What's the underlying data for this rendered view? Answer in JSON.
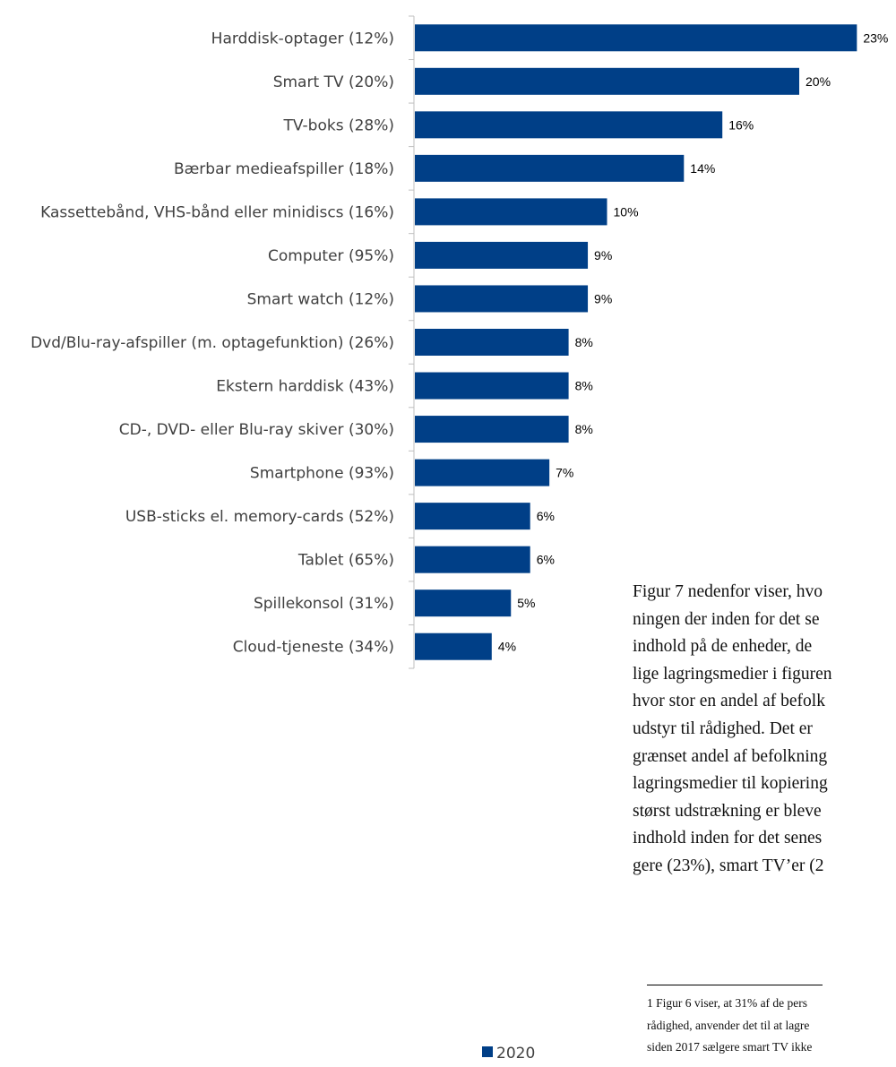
{
  "chart_data": {
    "type": "bar",
    "orientation": "horizontal",
    "categories": [
      "Harddisk-optager (12%)",
      "Smart TV (20%)",
      "TV-boks (28%)",
      "Bærbar medieafspiller (18%)",
      "Kassettebånd, VHS-bånd eller minidiscs (16%)",
      "Computer (95%)",
      "Smart watch (12%)",
      "Dvd/Blu-ray-afspiller (m. optagefunktion) (26%)",
      "Ekstern harddisk (43%)",
      "CD-, DVD- eller Blu-ray skiver (30%)",
      "Smartphone (93%)",
      "USB-sticks el. memory-cards (52%)",
      "Tablet  (65%)",
      "Spillekonsol (31%)",
      "Cloud-tjeneste (34%)"
    ],
    "series": [
      {
        "name": "2020",
        "values": [
          23,
          20,
          16,
          14,
          10,
          9,
          9,
          8,
          8,
          8,
          7,
          6,
          6,
          5,
          4
        ],
        "labels": [
          "23%",
          "20%",
          "16%",
          "14%",
          "10%",
          "9%",
          "9%",
          "8%",
          "8%",
          "8%",
          "7%",
          "6%",
          "6%",
          "5%",
          "4%"
        ]
      }
    ],
    "xlim": [
      0,
      25
    ],
    "grid": false,
    "legend": "bottom",
    "colors": {
      "bar": "#003F87",
      "axis": "#BFBFBF"
    }
  },
  "text": {
    "paragraph_lines": [
      "Figur 7 nedenfor viser, hvo",
      "ningen der inden for det se",
      "indhold på de enheder, de",
      "lige lagringsmedier i figuren",
      "hvor stor en andel af befolk",
      "udstyr til rådighed. Det er",
      "grænset andel af befolkning",
      "lagringsmedier til kopiering",
      "størst udstrækning er bleve",
      "indhold inden for det senes",
      "gere (23%), smart TV’er (2"
    ],
    "footnote_lines": [
      "1  Figur 6 viser, at 31% af de pers",
      "rådighed, anvender det til at lagre",
      "siden 2017 sælgere smart TV ikke"
    ]
  }
}
